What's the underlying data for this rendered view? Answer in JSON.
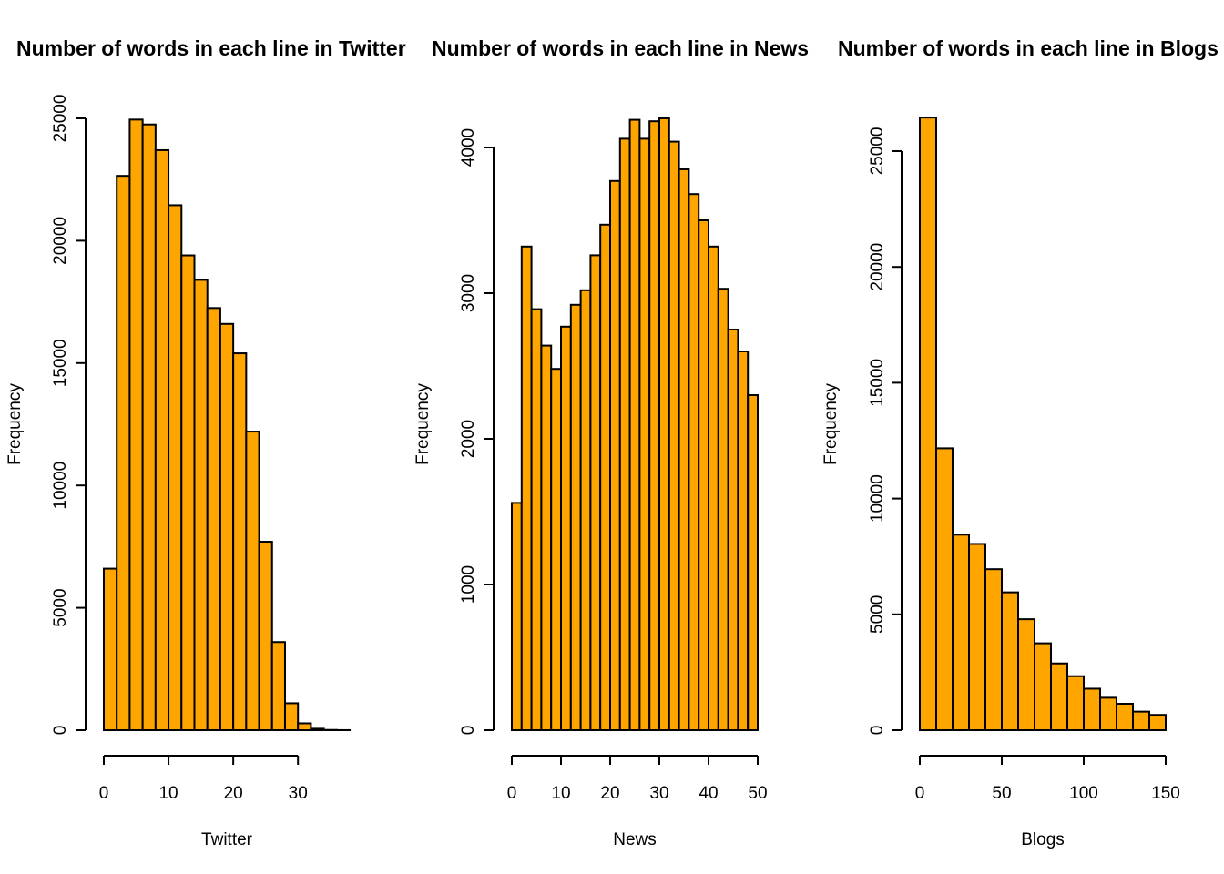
{
  "chart_data": [
    {
      "type": "bar",
      "title": "Number of words in each line in Twitter",
      "xlabel": "Twitter",
      "ylabel": "Frequency",
      "bar_color": "#FFA500",
      "bin_width": 2,
      "bin_start": 0,
      "values": [
        6600,
        22650,
        24950,
        24750,
        23700,
        21450,
        19400,
        18400,
        17250,
        16600,
        15400,
        12200,
        7700,
        3600,
        1100,
        280,
        60,
        10,
        2
      ],
      "xlim": [
        0,
        38
      ],
      "ylim": [
        0,
        25000
      ],
      "xticks": [
        0,
        10,
        20,
        30
      ],
      "yticks": [
        0,
        5000,
        10000,
        15000,
        20000,
        25000
      ],
      "grid": false
    },
    {
      "type": "bar",
      "title": "Number of words in each line in News",
      "xlabel": "News",
      "ylabel": "Frequency",
      "bar_color": "#FFA500",
      "bin_width": 2,
      "bin_start": 0,
      "values": [
        1560,
        3320,
        2890,
        2640,
        2480,
        2770,
        2920,
        3020,
        3260,
        3470,
        3770,
        4060,
        4190,
        4060,
        4180,
        4200,
        4040,
        3850,
        3680,
        3500,
        3320,
        3030,
        2750,
        2600,
        2300
      ],
      "xlim": [
        0,
        50
      ],
      "ylim": [
        0,
        4000
      ],
      "xticks": [
        0,
        10,
        20,
        30,
        40,
        50
      ],
      "yticks": [
        0,
        1000,
        2000,
        3000,
        4000
      ],
      "grid": false
    },
    {
      "type": "bar",
      "title": "Number of words in each line in Blogs",
      "xlabel": "Blogs",
      "ylabel": "Frequency",
      "bar_color": "#FFA500",
      "bin_width": 10,
      "bin_start": 0,
      "values": [
        26450,
        12170,
        8440,
        8040,
        6950,
        5950,
        4790,
        3750,
        2880,
        2330,
        1790,
        1400,
        1140,
        800,
        660
      ],
      "xlim": [
        0,
        150
      ],
      "ylim": [
        0,
        25000
      ],
      "xticks": [
        0,
        50,
        100,
        150
      ],
      "yticks": [
        0,
        5000,
        10000,
        15000,
        20000,
        25000
      ],
      "grid": false
    }
  ]
}
